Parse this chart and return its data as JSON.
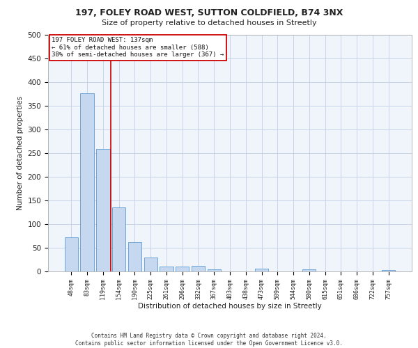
{
  "title1": "197, FOLEY ROAD WEST, SUTTON COLDFIELD, B74 3NX",
  "title2": "Size of property relative to detached houses in Streetly",
  "xlabel": "Distribution of detached houses by size in Streetly",
  "ylabel": "Number of detached properties",
  "bar_labels": [
    "48sqm",
    "83sqm",
    "119sqm",
    "154sqm",
    "190sqm",
    "225sqm",
    "261sqm",
    "296sqm",
    "332sqm",
    "367sqm",
    "403sqm",
    "438sqm",
    "473sqm",
    "509sqm",
    "544sqm",
    "580sqm",
    "615sqm",
    "651sqm",
    "686sqm",
    "722sqm",
    "757sqm"
  ],
  "bar_values": [
    72,
    377,
    259,
    135,
    62,
    30,
    10,
    10,
    12,
    5,
    0,
    0,
    6,
    0,
    0,
    4,
    0,
    0,
    0,
    0,
    3
  ],
  "bar_color": "#c5d8f0",
  "bar_edge_color": "#5b9bd5",
  "vline_x": 2.5,
  "vline_color": "#cc0000",
  "annotation_text": "197 FOLEY ROAD WEST: 137sqm\n← 61% of detached houses are smaller (588)\n38% of semi-detached houses are larger (367) →",
  "annotation_box_color": "#ffffff",
  "annotation_box_edge": "#cc0000",
  "ylim": [
    0,
    500
  ],
  "yticks": [
    0,
    50,
    100,
    150,
    200,
    250,
    300,
    350,
    400,
    450,
    500
  ],
  "footer": "Contains HM Land Registry data © Crown copyright and database right 2024.\nContains public sector information licensed under the Open Government Licence v3.0.",
  "bg_color": "#f0f4fb",
  "grid_color": "#c8d4e8",
  "fig_bg": "#ffffff"
}
